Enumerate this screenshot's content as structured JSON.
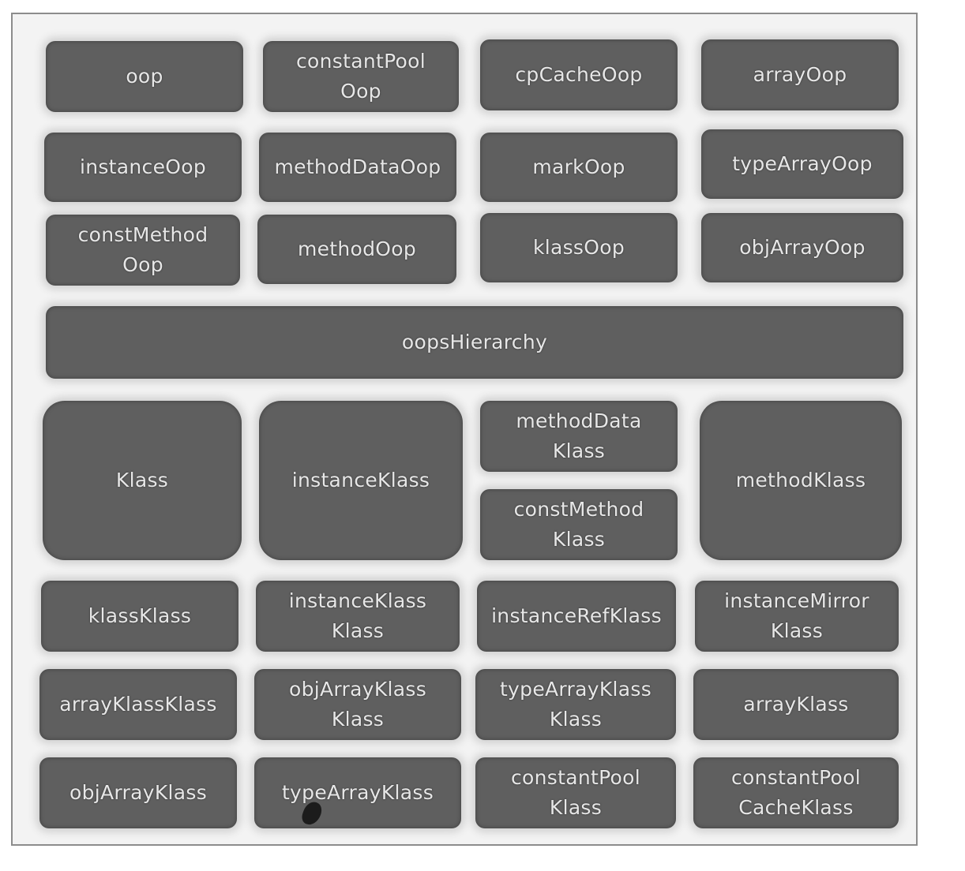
{
  "diagram": {
    "oop_row1": [
      "oop",
      "constantPool\nOop",
      "cpCacheOop",
      "arrayOop"
    ],
    "oop_row2": [
      "instanceOop",
      "methodDataOop",
      "markOop",
      "typeArrayOop"
    ],
    "oop_row3": [
      "constMethod\nOop",
      "methodOop",
      "klassOop",
      "objArrayOop"
    ],
    "hierarchy": "oopsHierarchy",
    "klass_big": [
      "Klass",
      "instanceKlass",
      "methodKlass"
    ],
    "klass_stacked": [
      "methodData\nKlass",
      "constMethod\nKlass"
    ],
    "klass_row2": [
      "klassKlass",
      "instanceKlass\nKlass",
      "instanceRefKlass",
      "instanceMirror\nKlass"
    ],
    "klass_row3": [
      "arrayKlassKlass",
      "objArrayKlass\nKlass",
      "typeArrayKlass\nKlass",
      "arrayKlass"
    ],
    "klass_row4": [
      "objArrayKlass",
      "typeArrayKlass",
      "constantPool\nKlass",
      "constantPool\nCacheKlass"
    ]
  },
  "colors": {
    "box_fill": "#5f5f5f",
    "label_text": "#e7e7e7",
    "frame_border": "#8c8c8c"
  }
}
